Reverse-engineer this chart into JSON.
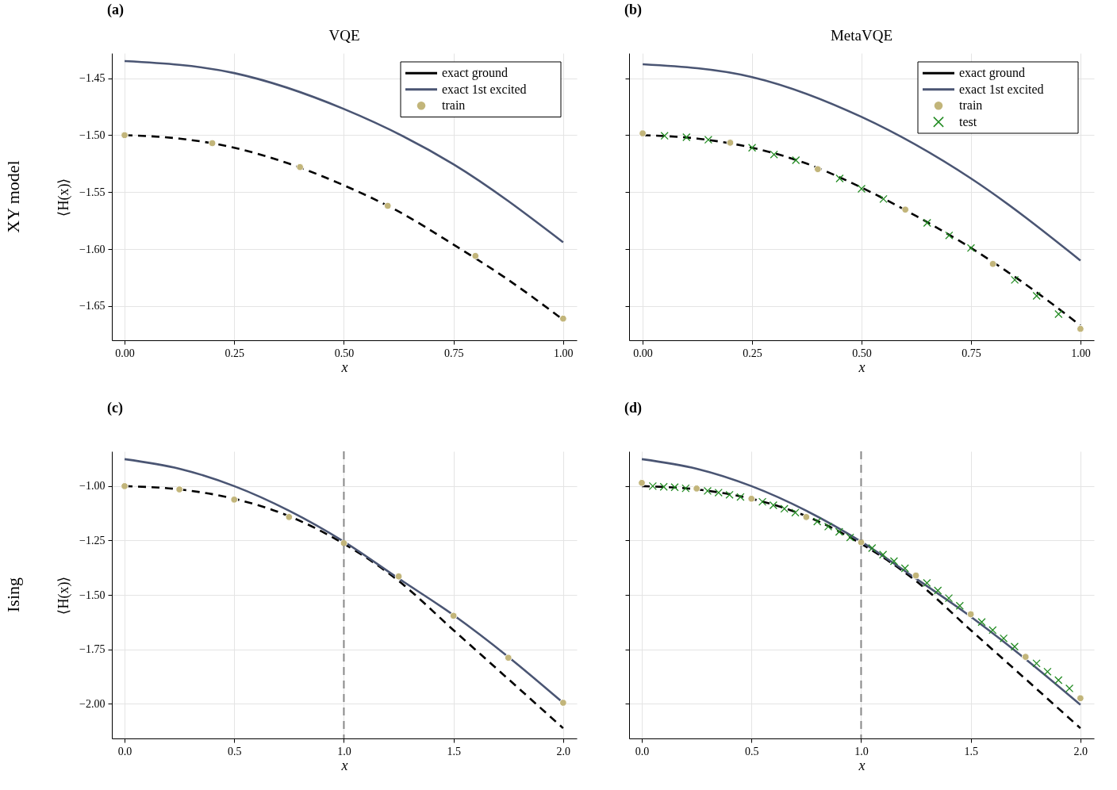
{
  "chart_data": [
    {
      "type": "line",
      "title": "VQE",
      "xlabel": "x",
      "ylabel": "⟨H(x)⟩",
      "annotations": [
        "(a)",
        "XY model"
      ],
      "xlim": [
        -0.029,
        1.031
      ],
      "ylim": [
        -1.68,
        -1.428
      ],
      "xticks": [
        {
          "value": 0,
          "label": "0.00"
        },
        {
          "value": 0.25,
          "label": "0.25"
        },
        {
          "value": 0.5,
          "label": "0.50"
        },
        {
          "value": 0.75,
          "label": "0.75"
        },
        {
          "value": 1,
          "label": "1.00"
        }
      ],
      "yticks": [
        {
          "value": -1.45,
          "label": "−1.45"
        },
        {
          "value": -1.5,
          "label": "−1.50"
        },
        {
          "value": -1.55,
          "label": "−1.55"
        },
        {
          "value": -1.6,
          "label": "−1.60"
        },
        {
          "value": -1.65,
          "label": "−1.65"
        }
      ],
      "grid": true,
      "legend": "top right",
      "series": [
        {
          "name": "exact ground",
          "type": "line",
          "line_style": "dashed",
          "color": "#000000",
          "x": [
            0,
            0.125,
            0.25,
            0.375,
            0.5,
            0.625,
            0.75,
            0.875,
            1
          ],
          "values": [
            -1.5,
            -1.503,
            -1.511,
            -1.525,
            -1.544,
            -1.567,
            -1.596,
            -1.627,
            -1.662
          ]
        },
        {
          "name": "exact 1st excited",
          "type": "line",
          "line_style": "solid",
          "color": "#4a5573",
          "x": [
            0,
            0.25,
            0.5,
            0.75,
            1
          ],
          "values": [
            -1.435,
            -1.4455,
            -1.477,
            -1.5255,
            -1.594
          ]
        },
        {
          "name": "train",
          "type": "scatter",
          "marker": "circle",
          "color": "#c2b57a",
          "x": [
            0,
            0.2,
            0.4,
            0.6,
            0.8,
            1
          ],
          "values": [
            -1.5,
            -1.507,
            -1.528,
            -1.562,
            -1.606,
            -1.661
          ]
        }
      ]
    },
    {
      "type": "line",
      "title": "MetaVQE",
      "xlabel": "x",
      "annotations": [
        "(b)"
      ],
      "tick_labels": "x",
      "xlim": [
        -0.031,
        1.031
      ],
      "ylim": [
        -1.68,
        -1.428
      ],
      "xticks": [
        {
          "value": 0,
          "label": "0.00"
        },
        {
          "value": 0.25,
          "label": "0.25"
        },
        {
          "value": 0.5,
          "label": "0.50"
        },
        {
          "value": 0.75,
          "label": "0.75"
        },
        {
          "value": 1,
          "label": "1.00"
        }
      ],
      "yticks": [
        {
          "value": -1.45,
          "label": null
        },
        {
          "value": -1.5,
          "label": null
        },
        {
          "value": -1.55,
          "label": null
        },
        {
          "value": -1.6,
          "label": null
        },
        {
          "value": -1.65,
          "label": null
        }
      ],
      "grid": true,
      "legend": "top right",
      "series": [
        {
          "name": "exact ground",
          "type": "line",
          "line_style": "dashed",
          "color": "#000000",
          "x": [
            0,
            0.125,
            0.25,
            0.375,
            0.5,
            0.625,
            0.75,
            0.875,
            1
          ],
          "values": [
            -1.5,
            -1.503,
            -1.511,
            -1.525,
            -1.546,
            -1.571,
            -1.599,
            -1.631,
            -1.667
          ]
        },
        {
          "name": "exact 1st excited",
          "type": "line",
          "line_style": "solid",
          "color": "#4a5573",
          "x": [
            0,
            0.25,
            0.5,
            0.75,
            1
          ],
          "values": [
            -1.4377,
            -1.449,
            -1.484,
            -1.538,
            -1.61
          ]
        },
        {
          "name": "train",
          "type": "scatter",
          "marker": "circle",
          "color": "#c2b57a",
          "x": [
            0,
            0.2,
            0.4,
            0.6,
            0.8,
            1
          ],
          "values": [
            -1.4984,
            -1.5066,
            -1.5298,
            -1.5653,
            -1.613,
            -1.67
          ]
        },
        {
          "name": "test",
          "type": "scatter",
          "marker": "cross",
          "color": "#228b22",
          "x": [
            0.05,
            0.1,
            0.15,
            0.25,
            0.3,
            0.35,
            0.45,
            0.5,
            0.55,
            0.65,
            0.7,
            0.75,
            0.85,
            0.9,
            0.95
          ],
          "values": [
            -1.5005,
            -1.5018,
            -1.504,
            -1.511,
            -1.517,
            -1.522,
            -1.538,
            -1.547,
            -1.556,
            -1.577,
            -1.588,
            -1.599,
            -1.627,
            -1.641,
            -1.657
          ]
        }
      ]
    },
    {
      "type": "line",
      "xlabel": "x",
      "ylabel": "⟨H(x)⟩",
      "annotations": [
        "(c)",
        "Ising"
      ],
      "xlim": [
        -0.058,
        2.062
      ],
      "ylim": [
        -2.16,
        -0.84
      ],
      "xticks": [
        {
          "value": 0,
          "label": "0.0"
        },
        {
          "value": 0.5,
          "label": "0.5"
        },
        {
          "value": 1,
          "label": "1.0"
        },
        {
          "value": 1.5,
          "label": "1.5"
        },
        {
          "value": 2,
          "label": "2.0"
        }
      ],
      "yticks": [
        {
          "value": -1,
          "label": "−1.00"
        },
        {
          "value": -1.25,
          "label": "−1.25"
        },
        {
          "value": -1.5,
          "label": "−1.50"
        },
        {
          "value": -1.75,
          "label": "−1.75"
        },
        {
          "value": -2,
          "label": "−2.00"
        }
      ],
      "grid": true,
      "ref_lines": [
        {
          "axis": "x",
          "value": 1,
          "color": "#888888",
          "line_style": "dashed"
        }
      ],
      "series": [
        {
          "type": "line",
          "line_style": "dashed",
          "color": "#000000",
          "x": [
            0,
            0.25,
            0.5,
            0.75,
            1,
            1.25,
            1.5,
            1.75,
            2
          ],
          "values": [
            -1,
            -1.015,
            -1.058,
            -1.138,
            -1.265,
            -1.436,
            -1.662,
            -1.887,
            -2.113
          ]
        },
        {
          "type": "line",
          "line_style": "solid",
          "color": "#4a5573",
          "x": [
            0,
            0.25,
            0.5,
            0.75,
            1,
            1.25,
            1.5,
            1.75,
            2
          ],
          "values": [
            -0.876,
            -0.92,
            -1,
            -1.113,
            -1.255,
            -1.425,
            -1.593,
            -1.785,
            -1.996
          ]
        },
        {
          "type": "scatter",
          "marker": "circle",
          "color": "#c2b57a",
          "x": [
            0,
            0.25,
            0.5,
            0.75,
            1,
            1.25,
            1.5,
            1.75,
            2
          ],
          "values": [
            -1,
            -1.015,
            -1.062,
            -1.142,
            -1.262,
            -1.415,
            -1.596,
            -1.789,
            -1.996
          ]
        }
      ]
    },
    {
      "type": "line",
      "xlabel": "x",
      "annotations": [
        "(d)"
      ],
      "tick_labels": "x",
      "xlim": [
        -0.058,
        2.062
      ],
      "ylim": [
        -2.16,
        -0.84
      ],
      "xticks": [
        {
          "value": 0,
          "label": "0.0"
        },
        {
          "value": 0.5,
          "label": "0.5"
        },
        {
          "value": 1,
          "label": "1.0"
        },
        {
          "value": 1.5,
          "label": "1.5"
        },
        {
          "value": 2,
          "label": "2.0"
        }
      ],
      "yticks": [
        {
          "value": -1,
          "label": null
        },
        {
          "value": -1.25,
          "label": null
        },
        {
          "value": -1.5,
          "label": null
        },
        {
          "value": -1.75,
          "label": null
        },
        {
          "value": -2,
          "label": null
        }
      ],
      "grid": true,
      "ref_lines": [
        {
          "axis": "x",
          "value": 1,
          "color": "#888888",
          "line_style": "dashed"
        }
      ],
      "series": [
        {
          "type": "line",
          "line_style": "dashed",
          "color": "#000000",
          "x": [
            0,
            0.25,
            0.5,
            0.75,
            1,
            1.25,
            1.5,
            1.75,
            2
          ],
          "values": [
            -1,
            -1.015,
            -1.058,
            -1.138,
            -1.265,
            -1.436,
            -1.662,
            -1.887,
            -2.113
          ]
        },
        {
          "type": "line",
          "line_style": "solid",
          "color": "#4a5573",
          "x": [
            0,
            0.25,
            0.5,
            0.75,
            1,
            1.25,
            1.5,
            1.75,
            2
          ],
          "values": [
            -0.876,
            -0.92,
            -1,
            -1.113,
            -1.255,
            -1.425,
            -1.6,
            -1.795,
            -2.005
          ]
        },
        {
          "type": "scatter",
          "marker": "circle",
          "color": "#c2b57a",
          "x": [
            0,
            0.25,
            0.5,
            0.75,
            1,
            1.25,
            1.5,
            1.75,
            2
          ],
          "values": [
            -0.985,
            -1.011,
            -1.058,
            -1.142,
            -1.258,
            -1.411,
            -1.589,
            -1.785,
            -1.975
          ]
        },
        {
          "type": "scatter",
          "marker": "cross",
          "color": "#228b22",
          "x": [
            0.05,
            0.1,
            0.15,
            0.2,
            0.3,
            0.35,
            0.4,
            0.45,
            0.55,
            0.6,
            0.65,
            0.7,
            0.8,
            0.85,
            0.9,
            0.95,
            1.05,
            1.1,
            1.15,
            1.2,
            1.3,
            1.35,
            1.4,
            1.45,
            1.55,
            1.6,
            1.65,
            1.7,
            1.8,
            1.85,
            1.9,
            1.95
          ],
          "values": [
            -1,
            -1.003,
            -1.005,
            -1.01,
            -1.022,
            -1.03,
            -1.04,
            -1.05,
            -1.072,
            -1.088,
            -1.104,
            -1.122,
            -1.163,
            -1.186,
            -1.21,
            -1.236,
            -1.285,
            -1.315,
            -1.345,
            -1.378,
            -1.445,
            -1.48,
            -1.515,
            -1.55,
            -1.625,
            -1.662,
            -1.7,
            -1.738,
            -1.815,
            -1.853,
            -1.892,
            -1.93
          ]
        }
      ]
    }
  ]
}
